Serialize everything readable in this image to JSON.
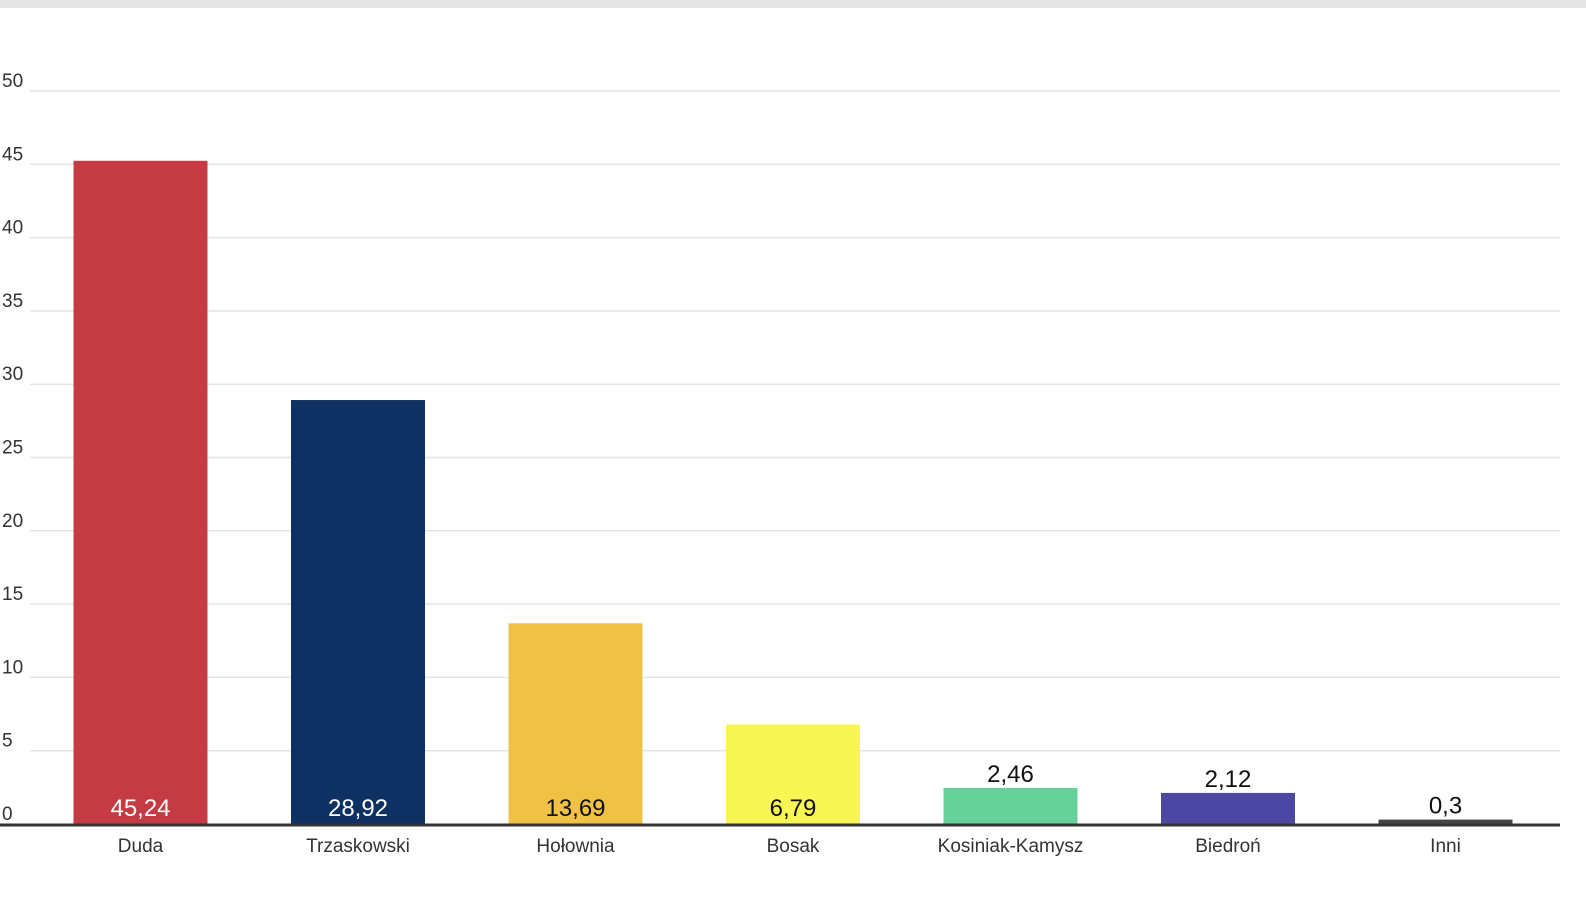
{
  "chart_data": {
    "type": "bar",
    "categories": [
      "Duda",
      "Trzaskowski",
      "Hołownia",
      "Bosak",
      "Kosiniak-Kamysz",
      "Biedroń",
      "Inni"
    ],
    "values": [
      45.24,
      28.92,
      13.69,
      6.79,
      2.46,
      2.12,
      0.3
    ],
    "value_labels": [
      "45,24",
      "28,92",
      "13,69",
      "6,79",
      "2,46",
      "2,12",
      "0,3"
    ],
    "colors": [
      "#c43b44",
      "#0f3063",
      "#f1c145",
      "#f8f653",
      "#66d19a",
      "#4b47a3",
      "#444444"
    ],
    "label_colors": [
      "#ffffff",
      "#ffffff",
      "#111111",
      "#111111",
      "#111111",
      "#111111",
      "#111111"
    ],
    "y_ticks": [
      "0",
      "5",
      "10",
      "15",
      "20",
      "25",
      "30",
      "35",
      "40",
      "45",
      "50"
    ],
    "ylim": [
      0,
      50
    ],
    "grid": true,
    "title": "",
    "xlabel": "",
    "ylabel": ""
  }
}
